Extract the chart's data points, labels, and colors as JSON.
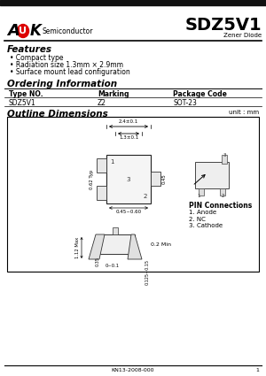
{
  "title": "SDZ5V1",
  "subtitle": "Zener Diode",
  "logo_semiconductor": "Semiconductor",
  "features_title": "Features",
  "features": [
    "Compact type",
    "Radiation size 1.3mm × 2.9mm",
    "Surface mount lead configuration"
  ],
  "ordering_title": "Ordering Information",
  "ordering_headers": [
    "Type NO.",
    "Marking",
    "Package Code"
  ],
  "ordering_data": [
    [
      "SDZ5V1",
      "Z2",
      "SOT-23"
    ]
  ],
  "outline_title": "Outline Dimensions",
  "unit_label": "unit : mm",
  "pin_connections_title": "PIN Connections",
  "pin_connections": [
    "1. Anode",
    "2. NC",
    "3. Cathode"
  ],
  "footer": "KN13-2008-000",
  "page": "1",
  "bg_color": "#ffffff",
  "header_bar_color": "#111111",
  "dim_label_2_4": "2.4±0.1",
  "dim_label_1_3": "1.3±0.1",
  "dim_label_0_45": "0.45~0.60",
  "dim_label_0_62": "0.62 Typ",
  "dim_label_0_45b": "0.45",
  "dim_label_1_12": "1.12 Max",
  "dim_label_0_3": "0~0.1",
  "dim_label_0_2": "0.2 Min",
  "dim_label_0_125": "0.125~0.15",
  "dim_label_0_35": "0.35"
}
